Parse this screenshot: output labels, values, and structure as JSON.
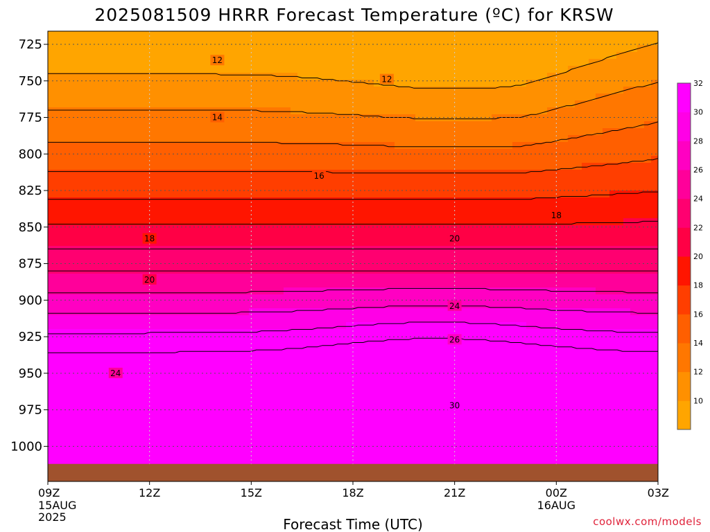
{
  "chart_data": {
    "type": "heatmap",
    "title": "2025081509 HRRR Forecast Temperature (ºC) for KRSW",
    "xlabel": "Forecast Time (UTC)",
    "ylabel": "",
    "x_ticks": [
      {
        "label": "09Z",
        "sub": [
          "15AUG",
          "2025"
        ]
      },
      {
        "label": "12Z",
        "sub": []
      },
      {
        "label": "15Z",
        "sub": []
      },
      {
        "label": "18Z",
        "sub": []
      },
      {
        "label": "21Z",
        "sub": []
      },
      {
        "label": "00Z",
        "sub": [
          "16AUG"
        ]
      },
      {
        "label": "03Z",
        "sub": []
      }
    ],
    "x_hours": [
      0,
      3,
      6,
      9,
      12,
      15,
      18
    ],
    "y_ticks": [
      725,
      750,
      775,
      800,
      825,
      850,
      875,
      900,
      925,
      950,
      975,
      1000
    ],
    "ylim": [
      716,
      1024
    ],
    "ground_level_hPa": 1012,
    "colorbar": {
      "labels": [
        10,
        12,
        14,
        16,
        18,
        20,
        22,
        24,
        26,
        28,
        30,
        32
      ],
      "colors": [
        "#ffa500",
        "#ff9000",
        "#ff7700",
        "#ff5f00",
        "#ff3e00",
        "#ff1500",
        "#ff0045",
        "#ff0070",
        "#ff009a",
        "#ff00c2",
        "#ff00e6",
        "#ff00ff"
      ]
    },
    "grid": true,
    "contour_labels": [
      {
        "value": "12",
        "x_hour": 5.0,
        "p_hPa": 736
      },
      {
        "value": "12",
        "x_hour": 10.0,
        "p_hPa": 749
      },
      {
        "value": "14",
        "x_hour": 5.0,
        "p_hPa": 775
      },
      {
        "value": "16",
        "x_hour": 8.0,
        "p_hPa": 815
      },
      {
        "value": "18",
        "x_hour": 3.0,
        "p_hPa": 858
      },
      {
        "value": "18",
        "x_hour": 15.0,
        "p_hPa": 842
      },
      {
        "value": "20",
        "x_hour": 3.0,
        "p_hPa": 886
      },
      {
        "value": "20",
        "x_hour": 12.0,
        "p_hPa": 858
      },
      {
        "value": "24",
        "x_hour": 2.0,
        "p_hPa": 950
      },
      {
        "value": "24",
        "x_hour": 12.0,
        "p_hPa": 904
      },
      {
        "value": "26",
        "x_hour": 12.0,
        "p_hPa": 927
      },
      {
        "value": "30",
        "x_hour": 12.0,
        "p_hPa": 972
      }
    ],
    "credit": "coolwx.com/models"
  },
  "colors": {
    "ground": "#a0522d",
    "axis": "#000000",
    "grid": "#555555"
  }
}
